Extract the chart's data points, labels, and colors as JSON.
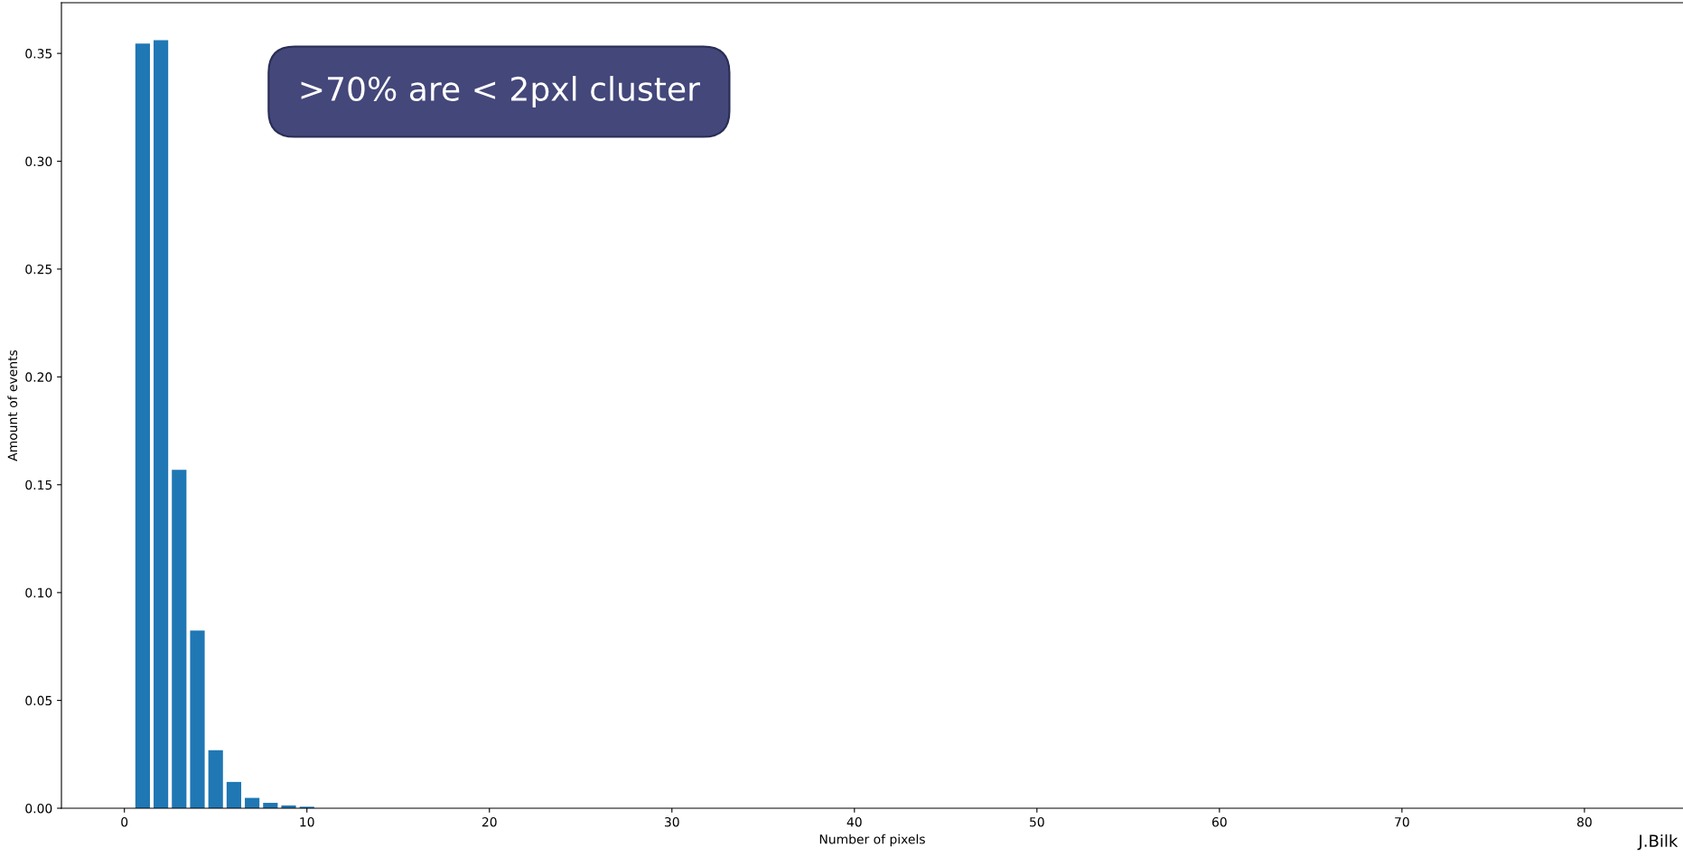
{
  "chart_data": {
    "type": "bar",
    "xlabel": "Number of pixels",
    "ylabel": "Amount of events",
    "x": [
      1,
      2,
      3,
      4,
      5,
      6,
      7,
      8,
      9,
      10
    ],
    "values": [
      0.3546,
      0.3561,
      0.1569,
      0.0824,
      0.0269,
      0.0122,
      0.0048,
      0.0025,
      0.0013,
      0.0007
    ],
    "color": "#1f77b4",
    "xlim": [
      -3.45,
      85.4
    ],
    "xticks": [
      0,
      10,
      20,
      30,
      40,
      50,
      60,
      70,
      80
    ],
    "ylim": [
      0,
      0.3735
    ],
    "yticks": [
      {
        "value": 0,
        "label": "0.00"
      },
      {
        "value": 0.05,
        "label": "0.05"
      },
      {
        "value": 0.1,
        "label": "0.10"
      },
      {
        "value": 0.15,
        "label": "0.15"
      },
      {
        "value": 0.2,
        "label": "0.20"
      },
      {
        "value": 0.25,
        "label": "0.25"
      },
      {
        "value": 0.3,
        "label": "0.30"
      },
      {
        "value": 0.35,
        "label": "0.35"
      }
    ],
    "grid": false,
    "legend": false,
    "annotations": [
      ">70% are < 2pxl cluster",
      "J.Bilk"
    ]
  }
}
